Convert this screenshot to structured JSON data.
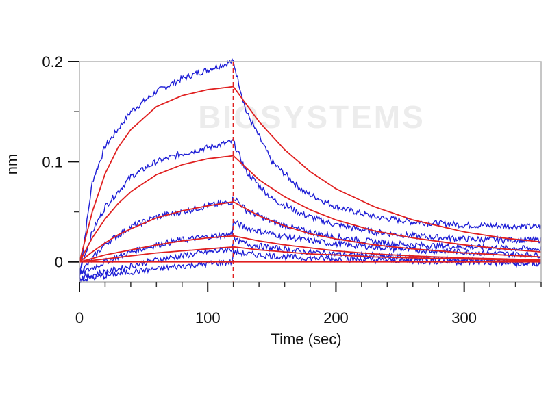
{
  "chart_data": {
    "type": "line",
    "title": "",
    "xlabel": "Time (sec)",
    "ylabel": "nm",
    "xlim": [
      0,
      360
    ],
    "ylim": [
      -0.02,
      0.2
    ],
    "x_ticks": [
      0,
      100,
      200,
      300
    ],
    "x_tick_labels": [
      "0",
      "100",
      "200",
      "300"
    ],
    "y_ticks": [
      0,
      0.1,
      0.2
    ],
    "y_tick_labels": [
      "0",
      "0.1",
      "0.2"
    ],
    "x_minor_step": 20,
    "y_minor_step": 0.05,
    "grid": false,
    "legend": "none",
    "association_end": 120,
    "association_end_line": {
      "x": 120,
      "style": "dashed",
      "color": "#e02020"
    },
    "watermark": "BIOSYSTEMS",
    "colors": {
      "measured": "#1f1fd6",
      "fitted": "#e02020",
      "frame": "#b4b4b4"
    },
    "series": [
      {
        "kind": "measured",
        "color": "#1f1fd6",
        "x": [
          0,
          10,
          20,
          40,
          60,
          80,
          100,
          119,
          120,
          130,
          150,
          175,
          200,
          230,
          260,
          300,
          330,
          360
        ],
        "y": [
          -0.015,
          0.08,
          0.115,
          0.15,
          0.17,
          0.183,
          0.192,
          0.2,
          0.2,
          0.15,
          0.1,
          0.07,
          0.055,
          0.045,
          0.04,
          0.037,
          0.036,
          0.035
        ]
      },
      {
        "kind": "measured",
        "color": "#1f1fd6",
        "x": [
          0,
          10,
          20,
          40,
          60,
          80,
          100,
          119,
          120,
          130,
          150,
          175,
          200,
          230,
          260,
          300,
          330,
          360
        ],
        "y": [
          -0.01,
          0.03,
          0.055,
          0.085,
          0.1,
          0.108,
          0.114,
          0.12,
          0.12,
          0.09,
          0.063,
          0.047,
          0.037,
          0.03,
          0.026,
          0.023,
          0.022,
          0.022
        ]
      },
      {
        "kind": "measured",
        "color": "#1f1fd6",
        "x": [
          0,
          20,
          40,
          60,
          80,
          100,
          119,
          120,
          130,
          150,
          175,
          200,
          230,
          260,
          300,
          330,
          360
        ],
        "y": [
          -0.012,
          0.018,
          0.035,
          0.045,
          0.05,
          0.056,
          0.06,
          0.065,
          0.052,
          0.04,
          0.031,
          0.025,
          0.02,
          0.017,
          0.015,
          0.014,
          0.013
        ]
      },
      {
        "kind": "measured",
        "color": "#1f1fd6",
        "x": [
          0,
          20,
          40,
          60,
          80,
          100,
          119,
          120,
          130,
          150,
          175,
          200,
          230,
          260,
          300,
          330,
          360
        ],
        "y": [
          -0.012,
          0.0,
          0.01,
          0.017,
          0.022,
          0.025,
          0.028,
          0.04,
          0.034,
          0.028,
          0.022,
          0.018,
          0.015,
          0.012,
          0.01,
          0.008,
          0.007
        ]
      },
      {
        "kind": "measured",
        "color": "#1f1fd6",
        "x": [
          0,
          20,
          40,
          60,
          80,
          100,
          119,
          120,
          130,
          150,
          175,
          200,
          230,
          260,
          300,
          330,
          360
        ],
        "y": [
          -0.016,
          -0.01,
          -0.004,
          0.002,
          0.006,
          0.01,
          0.013,
          0.022,
          0.018,
          0.014,
          0.01,
          0.008,
          0.006,
          0.004,
          0.002,
          0.0,
          -0.002
        ]
      },
      {
        "kind": "measured",
        "color": "#1f1fd6",
        "x": [
          0,
          20,
          40,
          60,
          80,
          100,
          119,
          120,
          130,
          150,
          175,
          200,
          230,
          260,
          300,
          330,
          360
        ],
        "y": [
          -0.018,
          -0.014,
          -0.01,
          -0.007,
          -0.004,
          -0.002,
          0.0,
          0.01,
          0.008,
          0.006,
          0.004,
          0.003,
          0.002,
          0.001,
          0.0,
          -0.001,
          -0.002
        ]
      },
      {
        "kind": "fitted",
        "color": "#e02020",
        "x": [
          0,
          10,
          20,
          30,
          40,
          60,
          80,
          100,
          120,
          140,
          160,
          180,
          200,
          230,
          260,
          300,
          330,
          360
        ],
        "y": [
          0.0,
          0.05,
          0.088,
          0.114,
          0.132,
          0.155,
          0.166,
          0.172,
          0.175,
          0.14,
          0.112,
          0.09,
          0.073,
          0.055,
          0.042,
          0.03,
          0.024,
          0.02
        ]
      },
      {
        "kind": "fitted",
        "color": "#e02020",
        "x": [
          0,
          10,
          20,
          30,
          40,
          60,
          80,
          100,
          120,
          140,
          160,
          180,
          200,
          230,
          260,
          300,
          330,
          360
        ],
        "y": [
          0.0,
          0.024,
          0.043,
          0.058,
          0.07,
          0.087,
          0.097,
          0.103,
          0.106,
          0.082,
          0.065,
          0.052,
          0.042,
          0.031,
          0.024,
          0.017,
          0.013,
          0.01
        ]
      },
      {
        "kind": "fitted",
        "color": "#e02020",
        "x": [
          0,
          10,
          20,
          30,
          40,
          60,
          80,
          100,
          120,
          140,
          160,
          180,
          200,
          230,
          260,
          300,
          330,
          360
        ],
        "y": [
          0.0,
          0.01,
          0.019,
          0.027,
          0.033,
          0.044,
          0.051,
          0.056,
          0.06,
          0.046,
          0.036,
          0.028,
          0.023,
          0.017,
          0.013,
          0.009,
          0.007,
          0.005
        ]
      },
      {
        "kind": "fitted",
        "color": "#e02020",
        "x": [
          0,
          20,
          40,
          60,
          80,
          100,
          120,
          140,
          160,
          180,
          200,
          230,
          260,
          300,
          330,
          360
        ],
        "y": [
          0.0,
          0.007,
          0.012,
          0.017,
          0.021,
          0.024,
          0.026,
          0.021,
          0.017,
          0.014,
          0.011,
          0.008,
          0.006,
          0.004,
          0.003,
          0.002
        ]
      },
      {
        "kind": "fitted",
        "color": "#e02020",
        "x": [
          0,
          20,
          40,
          60,
          80,
          100,
          120,
          140,
          160,
          180,
          200,
          230,
          260,
          300,
          330,
          360
        ],
        "y": [
          0.0,
          0.003,
          0.006,
          0.009,
          0.011,
          0.013,
          0.015,
          0.012,
          0.01,
          0.008,
          0.007,
          0.005,
          0.004,
          0.003,
          0.002,
          0.001
        ]
      },
      {
        "kind": "fitted",
        "color": "#e02020",
        "x": [
          0,
          120,
          360
        ],
        "y": [
          0.0,
          0.0,
          0.0
        ]
      }
    ]
  }
}
